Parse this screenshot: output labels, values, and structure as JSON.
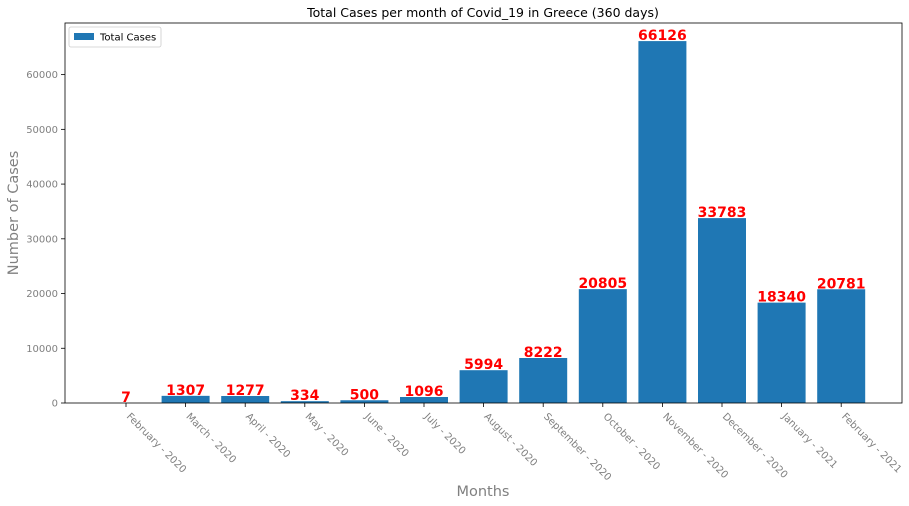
{
  "chart_data": {
    "type": "bar",
    "title": "Total Cases per month of Covid_19 in Greece (360 days)",
    "xlabel": "Months",
    "ylabel": "Number of Cases",
    "categories": [
      "February - 2020",
      "March - 2020",
      "April - 2020",
      "May - 2020",
      "June - 2020",
      "July - 2020",
      "August - 2020",
      "September - 2020",
      "October - 2020",
      "November - 2020",
      "December - 2020",
      "January - 2021",
      "February - 2021"
    ],
    "series": [
      {
        "name": "Total Cases",
        "values": [
          7,
          1307,
          1277,
          334,
          500,
          1096,
          5994,
          8222,
          20805,
          66126,
          33783,
          18340,
          20781
        ]
      }
    ],
    "data_labels": [
      "7",
      "1307",
      "1277",
      "334",
      "500",
      "1096",
      "5994",
      "8222",
      "20805",
      "66126",
      "33783",
      "18340",
      "20781"
    ],
    "yticks": [
      0,
      10000,
      20000,
      30000,
      40000,
      50000,
      60000
    ],
    "ytick_labels": [
      "0",
      "10000",
      "20000",
      "30000",
      "40000",
      "50000",
      "60000"
    ],
    "ylim": [
      0,
      69432
    ],
    "grid": false,
    "legend": {
      "position": "upper left",
      "entries": [
        "Total Cases"
      ]
    },
    "colors": {
      "bar": "#1f77b4",
      "data_label": "#ff0000",
      "tick_label": "#808080",
      "axis_label": "#808080",
      "spine": "#000000",
      "legend_border": "#cccccc"
    }
  }
}
